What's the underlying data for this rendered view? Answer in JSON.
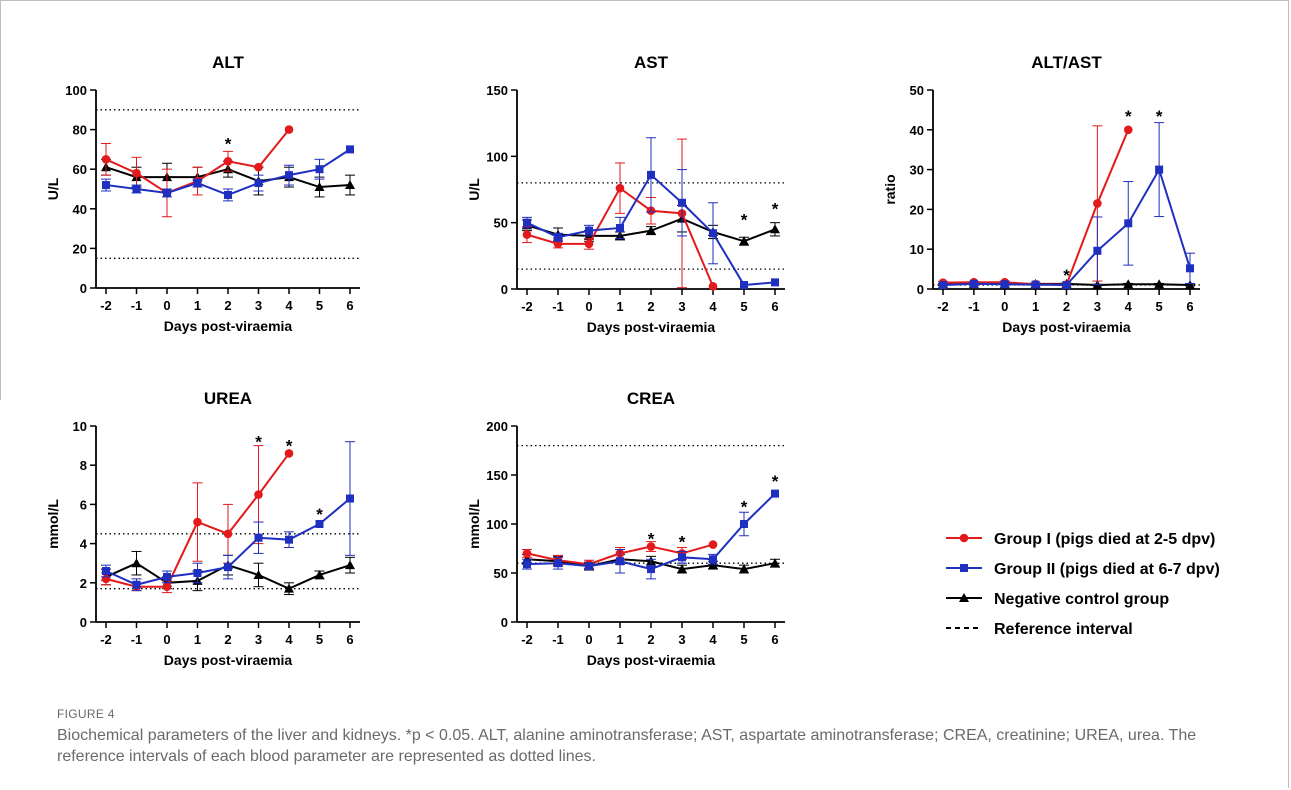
{
  "figure": {
    "label": "FIGURE 4",
    "caption": "Biochemical parameters of the liver and kidneys. *p < 0.05. ALT, alanine aminotransferase; AST, aspartate aminotransferase; CREA, creatinine; UREA, urea. The reference intervals of each blood parameter are represented as dotted lines."
  },
  "legend": {
    "items": [
      {
        "label": "Group I (pigs died at 2-5 dpv)",
        "color": "#e31a1c",
        "marker": "circle",
        "line": "solid"
      },
      {
        "label": "Group II (pigs died at 6-7 dpv)",
        "color": "#1f2fbf",
        "marker": "square",
        "line": "solid"
      },
      {
        "label": "Negative control group",
        "color": "#000000",
        "marker": "triangle",
        "line": "solid"
      },
      {
        "label": "Reference interval",
        "color": "#000000",
        "marker": "none",
        "line": "dashed"
      }
    ]
  },
  "chart_data": [
    {
      "type": "line",
      "title": "ALT",
      "xlabel": "Days post-viraemia",
      "ylabel": "U/L",
      "x_ticks": [
        "-2",
        "-1",
        "0",
        "1",
        "2",
        "3",
        "4",
        "5",
        "6"
      ],
      "y_ticks": [
        "0",
        "20",
        "40",
        "60",
        "80",
        "100"
      ],
      "ylim": [
        0,
        100
      ],
      "reference_lines": [
        15,
        90
      ],
      "significance_marks": [
        {
          "x": 2,
          "y": 74
        }
      ],
      "series": [
        {
          "name": "Group I (pigs died at 2-5 dpv)",
          "x": [
            -2,
            -1,
            0,
            1,
            2,
            3,
            4
          ],
          "values": [
            65,
            58,
            48,
            54,
            64,
            61,
            80
          ],
          "errors": [
            8,
            8,
            12,
            7,
            5,
            0,
            0
          ]
        },
        {
          "name": "Group II (pigs died at 6-7 dpv)",
          "x": [
            -2,
            -1,
            0,
            1,
            2,
            3,
            4,
            5,
            6
          ],
          "values": [
            52,
            50,
            48,
            53,
            47,
            53,
            57,
            60,
            70
          ],
          "errors": [
            3,
            2,
            2,
            2,
            3,
            4,
            5,
            5,
            0
          ]
        },
        {
          "name": "Negative control group",
          "x": [
            -2,
            -1,
            0,
            1,
            2,
            3,
            4,
            5,
            6
          ],
          "values": [
            61,
            56,
            56,
            56,
            60,
            54,
            56,
            51,
            52
          ],
          "errors": [
            4,
            5,
            7,
            5,
            4,
            7,
            5,
            5,
            5
          ]
        }
      ]
    },
    {
      "type": "line",
      "title": "AST",
      "xlabel": "Days post-viraemia",
      "ylabel": "U/L",
      "x_ticks": [
        "-2",
        "-1",
        "0",
        "1",
        "2",
        "3",
        "4",
        "5",
        "6"
      ],
      "y_ticks": [
        "0",
        "50",
        "100",
        "150"
      ],
      "ylim": [
        0,
        150
      ],
      "reference_lines": [
        15,
        80
      ],
      "significance_marks": [
        {
          "x": 5,
          "y": 54
        },
        {
          "x": 6,
          "y": 62
        }
      ],
      "series": [
        {
          "name": "Group I (pigs died at 2-5 dpv)",
          "x": [
            -2,
            -1,
            0,
            1,
            2,
            3,
            4
          ],
          "values": [
            41,
            34,
            34,
            76,
            59,
            57,
            2
          ],
          "errors": [
            6,
            3,
            4,
            19,
            10,
            56,
            0
          ]
        },
        {
          "name": "Group II (pigs died at 6-7 dpv)",
          "x": [
            -2,
            -1,
            0,
            1,
            2,
            3,
            4,
            5,
            6
          ],
          "values": [
            50,
            39,
            44,
            46,
            86,
            65,
            42,
            3,
            5
          ],
          "errors": [
            4,
            3,
            4,
            8,
            28,
            25,
            23,
            0,
            0
          ]
        },
        {
          "name": "Negative control group",
          "x": [
            -2,
            -1,
            0,
            1,
            2,
            3,
            4,
            5,
            6
          ],
          "values": [
            48,
            41,
            40,
            40,
            44,
            53,
            43,
            36,
            45
          ],
          "errors": [
            4,
            5,
            4,
            3,
            3,
            10,
            5,
            3,
            5
          ]
        }
      ]
    },
    {
      "type": "line",
      "title": "ALT/AST",
      "xlabel": "Days post-viraemia",
      "ylabel": "ratio",
      "x_ticks": [
        "-2",
        "-1",
        "0",
        "1",
        "2",
        "3",
        "4",
        "5",
        "6"
      ],
      "y_ticks": [
        "0",
        "10",
        "20",
        "30",
        "40",
        "50"
      ],
      "ylim": [
        0,
        50
      ],
      "reference_lines": [
        1
      ],
      "significance_marks": [
        {
          "x": 2,
          "y": 4
        },
        {
          "x": 4,
          "y": 44
        },
        {
          "x": 5,
          "y": 44
        }
      ],
      "series": [
        {
          "name": "Group I (pigs died at 2-5 dpv)",
          "x": [
            -2,
            -1,
            0,
            1,
            2,
            3,
            4
          ],
          "values": [
            1.6,
            1.7,
            1.7,
            1.2,
            1.1,
            21.5,
            40
          ],
          "errors": [
            0.3,
            0.2,
            0.3,
            0.2,
            0.2,
            19.5,
            0
          ]
        },
        {
          "name": "Group II (pigs died at 6-7 dpv)",
          "x": [
            -2,
            -1,
            0,
            1,
            2,
            3,
            4,
            5,
            6
          ],
          "values": [
            1.0,
            1.3,
            1.2,
            1.1,
            1.0,
            9.6,
            16.5,
            30,
            5.2
          ],
          "errors": [
            0.2,
            0.2,
            0.2,
            0.2,
            0.2,
            8.5,
            10.5,
            11.8,
            3.8
          ]
        },
        {
          "name": "Negative control group",
          "x": [
            -2,
            -1,
            0,
            1,
            2,
            3,
            4,
            5,
            6
          ],
          "values": [
            1.2,
            1.3,
            1.3,
            1.3,
            1.3,
            1.0,
            1.2,
            1.2,
            1.0
          ],
          "errors": [
            0.2,
            0.2,
            0.2,
            0.2,
            0.2,
            0.2,
            0.2,
            0.2,
            0.2
          ]
        }
      ]
    },
    {
      "type": "line",
      "title": "UREA",
      "xlabel": "Days post-viraemia",
      "ylabel": "mmol/L",
      "x_ticks": [
        "-2",
        "-1",
        "0",
        "1",
        "2",
        "3",
        "4",
        "5",
        "6"
      ],
      "y_ticks": [
        "0",
        "2",
        "4",
        "6",
        "8",
        "10"
      ],
      "ylim": [
        0,
        10
      ],
      "reference_lines": [
        1.7,
        4.5
      ],
      "significance_marks": [
        {
          "x": 3,
          "y": 9.3
        },
        {
          "x": 4,
          "y": 9.1
        },
        {
          "x": 5,
          "y": 5.6
        }
      ],
      "series": [
        {
          "name": "Group I (pigs died at 2-5 dpv)",
          "x": [
            -2,
            -1,
            0,
            1,
            2,
            3,
            4
          ],
          "values": [
            2.2,
            1.8,
            1.8,
            5.1,
            4.5,
            6.5,
            8.6
          ],
          "errors": [
            0.3,
            0.2,
            0.3,
            2.0,
            1.5,
            2.5,
            0
          ]
        },
        {
          "name": "Group II (pigs died at 6-7 dpv)",
          "x": [
            -2,
            -1,
            0,
            1,
            2,
            3,
            4,
            5,
            6
          ],
          "values": [
            2.6,
            1.9,
            2.3,
            2.5,
            2.8,
            4.3,
            4.2,
            5.0,
            6.3
          ],
          "errors": [
            0.3,
            0.3,
            0.3,
            0.5,
            0.6,
            0.8,
            0.4,
            0,
            2.9
          ]
        },
        {
          "name": "Negative control group",
          "x": [
            -2,
            -1,
            0,
            1,
            2,
            3,
            4,
            5,
            6
          ],
          "values": [
            2.3,
            3.0,
            2.0,
            2.1,
            2.9,
            2.4,
            1.7,
            2.4,
            2.9
          ],
          "errors": [
            0.4,
            0.6,
            0.3,
            0.5,
            0.5,
            0.6,
            0.3,
            0.2,
            0.4
          ]
        }
      ]
    },
    {
      "type": "line",
      "title": "CREA",
      "xlabel": "Days post-viraemia",
      "ylabel": "mmol/L",
      "x_ticks": [
        "-2",
        "-1",
        "0",
        "1",
        "2",
        "3",
        "4",
        "5",
        "6"
      ],
      "y_ticks": [
        "0",
        "50",
        "100",
        "150",
        "200"
      ],
      "ylim": [
        0,
        200
      ],
      "reference_lines": [
        60,
        180
      ],
      "significance_marks": [
        {
          "x": 2,
          "y": 87
        },
        {
          "x": 3,
          "y": 84
        },
        {
          "x": 5,
          "y": 120
        },
        {
          "x": 6,
          "y": 146
        }
      ],
      "series": [
        {
          "name": "Group I (pigs died at 2-5 dpv)",
          "x": [
            -2,
            -1,
            0,
            1,
            2,
            3,
            4
          ],
          "values": [
            70,
            63,
            59,
            70,
            77,
            70,
            79
          ],
          "errors": [
            4,
            5,
            4,
            6,
            5,
            6,
            0
          ]
        },
        {
          "name": "Group II (pigs died at 6-7 dpv)",
          "x": [
            -2,
            -1,
            0,
            1,
            2,
            3,
            4,
            5,
            6
          ],
          "values": [
            59,
            60,
            57,
            62,
            54,
            66,
            64,
            100,
            131
          ],
          "errors": [
            5,
            6,
            3,
            12,
            10,
            6,
            5,
            12,
            0
          ]
        },
        {
          "name": "Negative control group",
          "x": [
            -2,
            -1,
            0,
            1,
            2,
            3,
            4,
            5,
            6
          ],
          "values": [
            64,
            62,
            57,
            64,
            62,
            54,
            58,
            54,
            60
          ],
          "errors": [
            5,
            5,
            4,
            5,
            5,
            4,
            4,
            4,
            4
          ]
        }
      ]
    }
  ]
}
